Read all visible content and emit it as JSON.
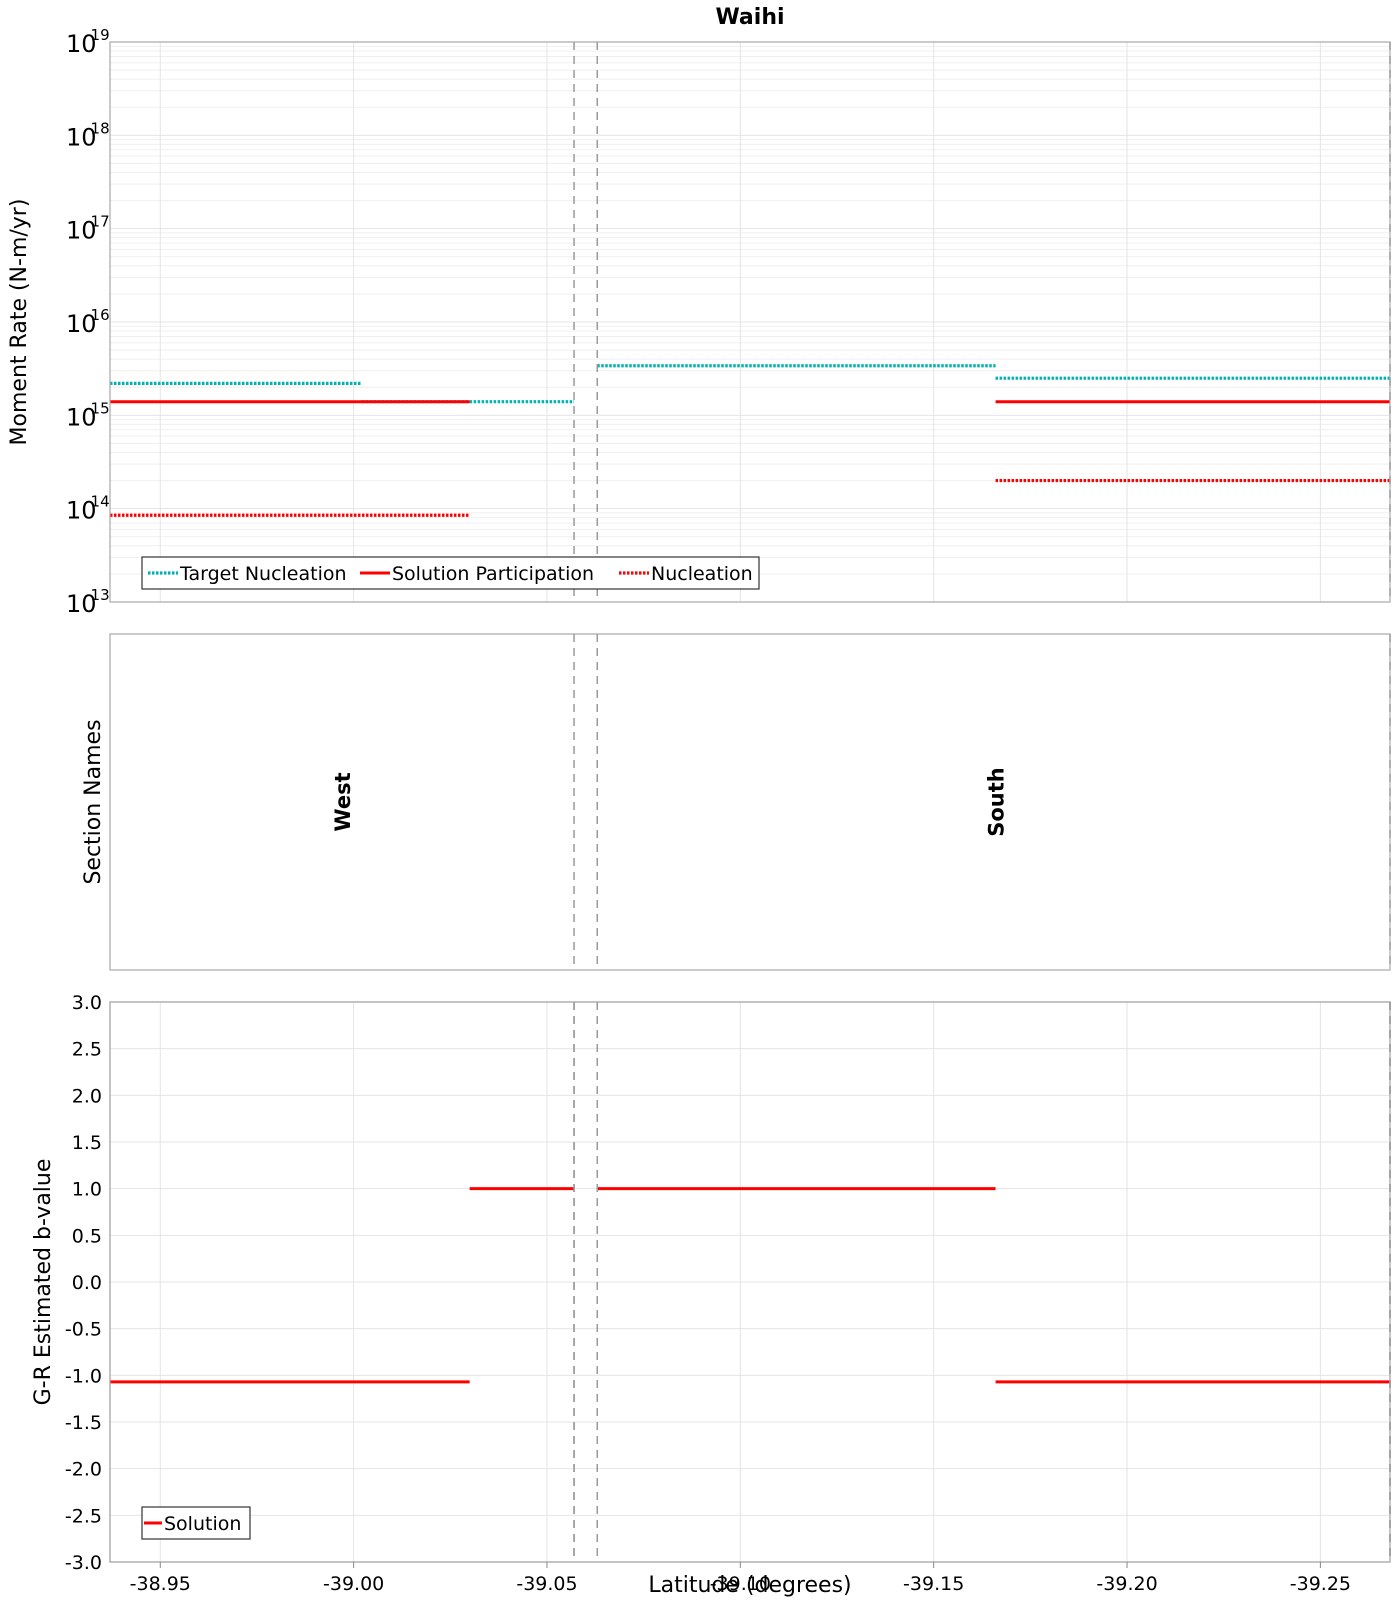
{
  "chart_data": [
    {
      "type": "line",
      "title": "Waihi",
      "ylabel": "Moment Rate (N-m/yr)",
      "yscale": "log",
      "ylim": [
        10000000000000.0,
        1e+19
      ],
      "y_tick_labels": [
        {
          "base": "10",
          "exp": "13"
        },
        {
          "base": "10",
          "exp": "14"
        },
        {
          "base": "10",
          "exp": "15"
        },
        {
          "base": "10",
          "exp": "16"
        },
        {
          "base": "10",
          "exp": "17"
        },
        {
          "base": "10",
          "exp": "18"
        },
        {
          "base": "10",
          "exp": "19"
        }
      ],
      "xlim": [
        -38.937,
        -39.268
      ],
      "grid": true,
      "legend_position": "bottom-left",
      "series": [
        {
          "name": "Target Nucleation",
          "color": "#00b2b2",
          "style": "dotted",
          "segments": [
            {
              "x": [
                -38.937,
                -39.002
              ],
              "y": 2200000000000000.0
            },
            {
              "x": [
                -39.002,
                -39.03
              ],
              "y": 1400000000000000.0
            },
            {
              "x": [
                -39.03,
                -39.057
              ],
              "y": 1400000000000000.0
            },
            {
              "x": [
                -39.063,
                -39.166
              ],
              "y": 3400000000000000.0
            },
            {
              "x": [
                -39.166,
                -39.268
              ],
              "y": 2500000000000000.0
            }
          ]
        },
        {
          "name": "Solution Participation",
          "color": "#ff0000",
          "style": "solid",
          "segments": [
            {
              "x": [
                -38.937,
                -39.03
              ],
              "y": 1400000000000000.0
            },
            {
              "x": [
                -39.166,
                -39.268
              ],
              "y": 1400000000000000.0
            }
          ]
        },
        {
          "name": "Nucleation",
          "color": "#ff0000",
          "style": "dotted",
          "segments": [
            {
              "x": [
                -38.937,
                -39.03
              ],
              "y": 85000000000000.0
            },
            {
              "x": [
                -39.166,
                -39.268
              ],
              "y": 200000000000000.0
            }
          ]
        }
      ]
    },
    {
      "type": "table",
      "ylabel": "Section Names",
      "sections": [
        {
          "name": "West",
          "x": -38.997
        },
        {
          "name": "South",
          "x": -39.166
        }
      ]
    },
    {
      "type": "line",
      "ylabel": "G-R Estimated b-value",
      "xlabel": "Latitude (degrees)",
      "ylim": [
        -3.0,
        3.0
      ],
      "y_ticks": [
        3.0,
        2.5,
        2.0,
        1.5,
        1.0,
        0.5,
        0.0,
        -0.5,
        -1.0,
        -1.5,
        -2.0,
        -2.5,
        -3.0
      ],
      "y_tick_labels": [
        "3.0",
        "2.5",
        "2.0",
        "1.5",
        "1.0",
        "0.5",
        "0.0",
        "-0.5",
        "-1.0",
        "-1.5",
        "-2.0",
        "-2.5",
        "-3.0"
      ],
      "x_ticks": [
        -38.95,
        -39.0,
        -39.05,
        -39.1,
        -39.15,
        -39.2,
        -39.25
      ],
      "x_tick_labels": [
        "-38.95",
        "-39.00",
        "-39.05",
        "-39.10",
        "-39.15",
        "-39.20",
        "-39.25"
      ],
      "grid": true,
      "legend_position": "bottom-left",
      "series": [
        {
          "name": "Solution",
          "color": "#ff0000",
          "style": "solid",
          "segments": [
            {
              "x": [
                -38.937,
                -39.03
              ],
              "y": -1.07
            },
            {
              "x": [
                -39.03,
                -39.057
              ],
              "y": 1.0
            },
            {
              "x": [
                -39.063,
                -39.166
              ],
              "y": 1.0
            },
            {
              "x": [
                -39.166,
                -39.268
              ],
              "y": -1.07
            }
          ]
        }
      ]
    }
  ],
  "section_boundaries": [
    -39.057,
    -39.063,
    -39.268
  ]
}
